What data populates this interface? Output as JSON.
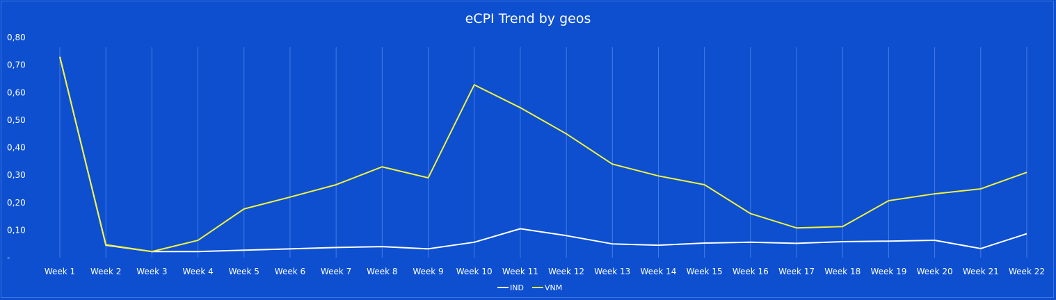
{
  "chart_data": {
    "type": "line",
    "title": "eCPI Trend by geos",
    "xlabel": "",
    "ylabel": "",
    "ylim": [
      0,
      0.8
    ],
    "y_ticks": [
      {
        "value": 0,
        "label": "-"
      },
      {
        "value": 0.1,
        "label": "0,10"
      },
      {
        "value": 0.2,
        "label": "0,20"
      },
      {
        "value": 0.3,
        "label": "0,30"
      },
      {
        "value": 0.4,
        "label": "0,40"
      },
      {
        "value": 0.5,
        "label": "0,50"
      },
      {
        "value": 0.6,
        "label": "0,60"
      },
      {
        "value": 0.7,
        "label": "0,70"
      },
      {
        "value": 0.8,
        "label": "0,80"
      }
    ],
    "categories": [
      "Week 1",
      "Week 2",
      "Week 3",
      "Week 4",
      "Week 5",
      "Week 6",
      "Week 7",
      "Week 8",
      "Week 9",
      "Week 10",
      "Week 11",
      "Week 12",
      "Week 13",
      "Week 14",
      "Week 15",
      "Week 16",
      "Week 17",
      "Week 18",
      "Week 19",
      "Week 20",
      "Week 21",
      "Week 22"
    ],
    "series": [
      {
        "name": "IND",
        "color": "#ffffff",
        "values": [
          0.73,
          0.045,
          0.022,
          0.022,
          0.027,
          0.032,
          0.037,
          0.04,
          0.032,
          0.056,
          0.105,
          0.08,
          0.05,
          0.045,
          0.053,
          0.056,
          0.052,
          0.058,
          0.06,
          0.063,
          0.033,
          0.087
        ]
      },
      {
        "name": "VNM",
        "color": "#f2f23c",
        "values": [
          0.73,
          0.047,
          0.022,
          0.063,
          0.177,
          0.22,
          0.265,
          0.33,
          0.29,
          0.628,
          0.545,
          0.45,
          0.34,
          0.297,
          0.265,
          0.16,
          0.108,
          0.113,
          0.207,
          0.232,
          0.25,
          0.31
        ]
      }
    ],
    "grid": "vertical",
    "legend_position": "bottom"
  }
}
